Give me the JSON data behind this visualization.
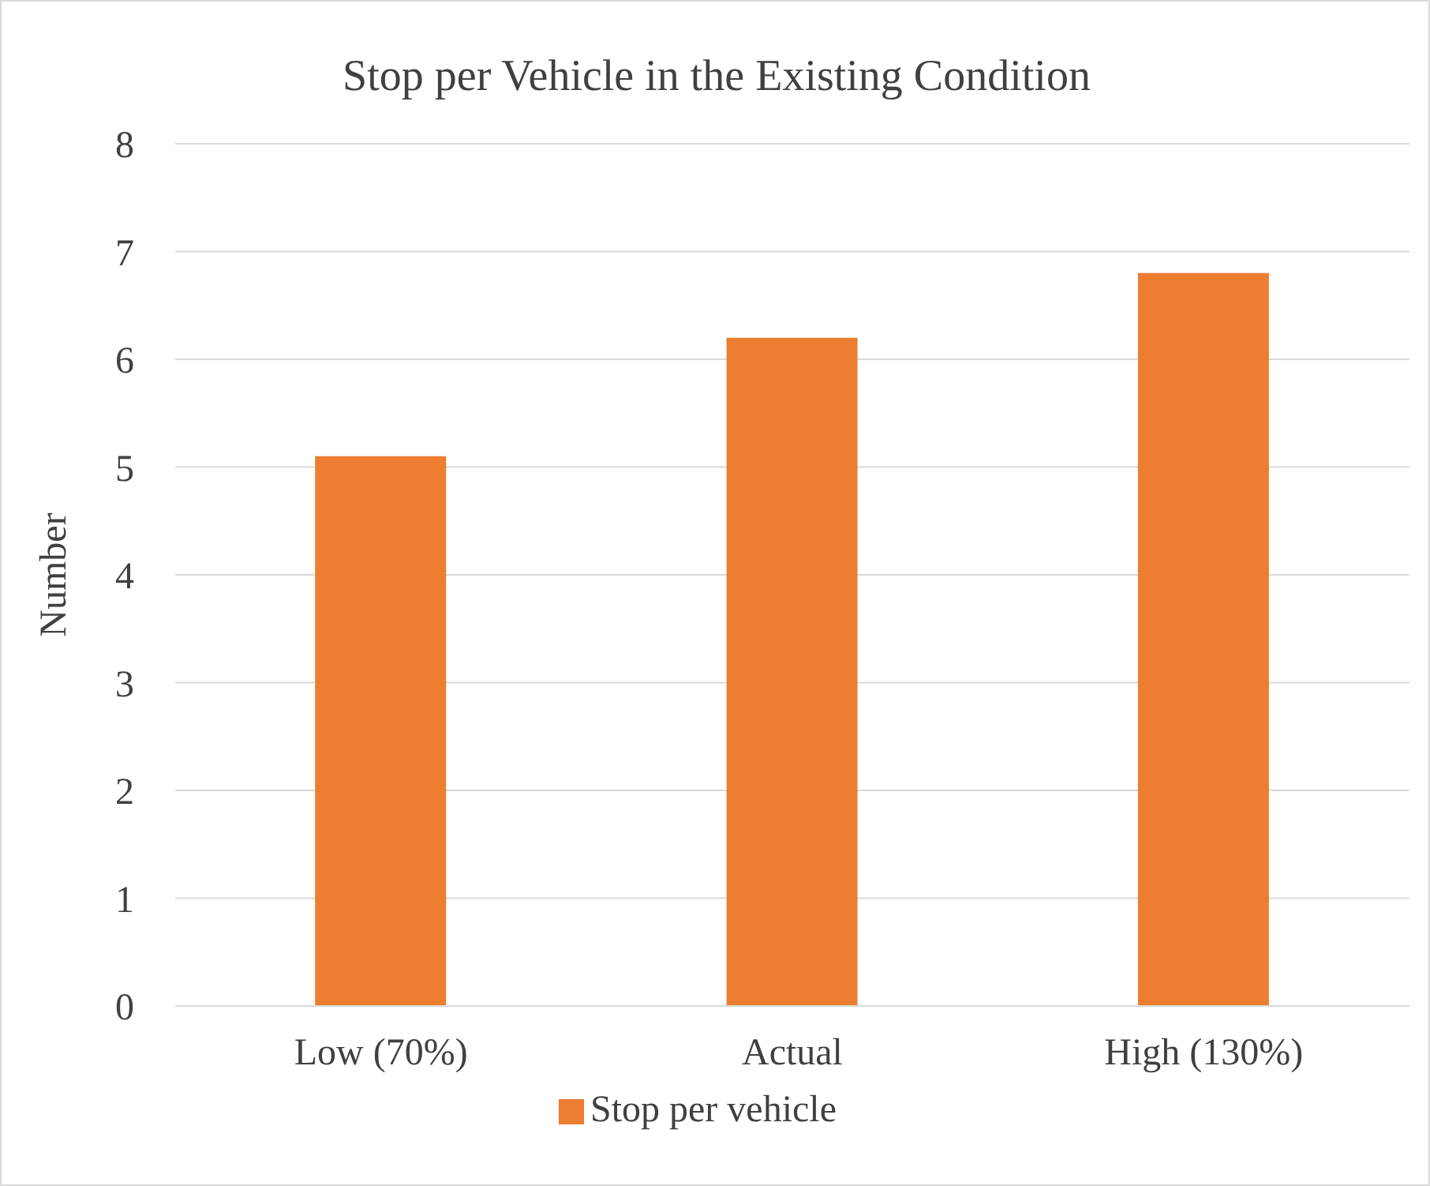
{
  "chart_data": {
    "type": "bar",
    "title": "Stop per Vehicle in the Existing Condition",
    "ylabel": "Number",
    "categories": [
      "Low (70%)",
      "Actual",
      "High (130%)"
    ],
    "series": [
      {
        "name": "Stop per vehicle",
        "color": "#ed7d31",
        "values": [
          5.1,
          6.2,
          6.8
        ]
      }
    ],
    "ylim": [
      0,
      8
    ],
    "yticks": [
      0,
      1,
      2,
      3,
      4,
      5,
      6,
      7,
      8
    ],
    "grid": "y",
    "legend": "bottom"
  }
}
